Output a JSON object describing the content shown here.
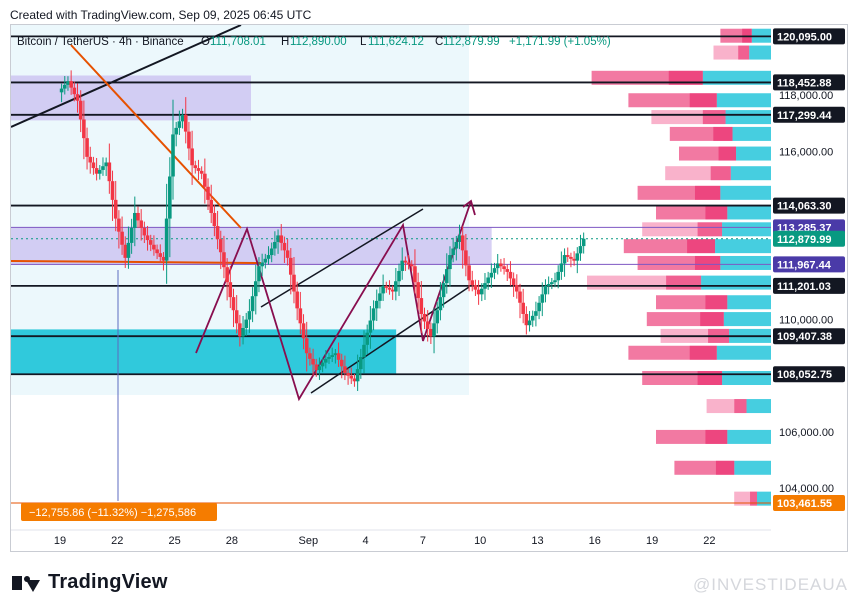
{
  "header": {
    "created_text": "Created with TradingView.com, Sep 09, 2025 06:45 UTC",
    "symbol": "Bitcoin / TetherUS · 4h · Binance",
    "o_label": "O",
    "o_value": "111,708.01",
    "h_label": "H",
    "h_value": "112,890.00",
    "l_label": "L",
    "l_value": "111,624.12",
    "c_label": "C",
    "c_value": "112,879.99",
    "change": "+1,171.99 (+1.05%)"
  },
  "footer": {
    "logo_text": "TradingView",
    "watermark": "@INVESTIDEAUA"
  },
  "measure_label": "−12,755.86 (−11.32%) −1,275,586",
  "colors": {
    "up": "#089981",
    "down": "#f23645",
    "violet": "#b39ddb",
    "cyan": "#00bcd4",
    "orange": "#e65100",
    "maroon": "#880e4f",
    "pink": "#f06292",
    "price_tag": "#131722",
    "current_tag": "#089981",
    "violet_tag": "#4a3aa8",
    "orange_tag": "#f57c00"
  },
  "chart_data": {
    "type": "candlestick",
    "ylim": [
      102500,
      120500
    ],
    "y_ticks": [
      104000,
      106000,
      110000,
      116000,
      118000
    ],
    "y_tick_labels": [
      "104,000.00",
      "106,000.00",
      "110,000.00",
      "116,000.00",
      "118,000.00"
    ],
    "x_tick_labels": [
      "19",
      "22",
      "25",
      "28",
      "Sep",
      "4",
      "7",
      "10",
      "13",
      "16",
      "19",
      "22"
    ],
    "x_tick_days": [
      0,
      3,
      6,
      9,
      13,
      16,
      19,
      22,
      25,
      28,
      31,
      34
    ],
    "levels": [
      {
        "price": 120095,
        "label": "120,095.00",
        "tag": "dark"
      },
      {
        "price": 118452.88,
        "label": "118,452.88",
        "tag": "dark"
      },
      {
        "price": 117299.44,
        "label": "117,299.44",
        "tag": "dark"
      },
      {
        "price": 114063.3,
        "label": "114,063.30",
        "tag": "dark"
      },
      {
        "price": 113285.37,
        "label": "113,285.37",
        "tag": "violet"
      },
      {
        "price": 112879.99,
        "label": "112,879.99",
        "tag": "current"
      },
      {
        "price": 111967.44,
        "label": "111,967.44",
        "tag": "violet"
      },
      {
        "price": 111201.03,
        "label": "111,201.03",
        "tag": "dark"
      },
      {
        "price": 109407.38,
        "label": "109,407.38",
        "tag": "dark"
      },
      {
        "price": 108052.75,
        "label": "108,052.75",
        "tag": "dark"
      },
      {
        "price": 103461.55,
        "label": "103,461.55",
        "tag": "orange"
      }
    ],
    "zones": [
      {
        "name": "violet-upper",
        "x0": 0,
        "x1": 10,
        "p0": 117100,
        "p1": 118700,
        "color": "violet"
      },
      {
        "name": "violet-mid",
        "x0": 0,
        "x1": 22.6,
        "p0": 111950,
        "p1": 113300,
        "color": "violet"
      },
      {
        "name": "cyan-lower",
        "x0": 0,
        "x1": 17.6,
        "p0": 108050,
        "p1": 109650,
        "color": "cyan"
      }
    ],
    "candle_path": [
      [
        0,
        118100
      ],
      [
        0.5,
        118500
      ],
      [
        1,
        117800
      ],
      [
        1.5,
        115800
      ],
      [
        2,
        115200
      ],
      [
        2.5,
        115600
      ],
      [
        3,
        113600
      ],
      [
        3.5,
        112200
      ],
      [
        4,
        113800
      ],
      [
        4.5,
        113000
      ],
      [
        5,
        112500
      ],
      [
        5.5,
        112100
      ],
      [
        6,
        116600
      ],
      [
        6.5,
        117300
      ],
      [
        7,
        115500
      ],
      [
        7.5,
        115200
      ],
      [
        8,
        113800
      ],
      [
        8.5,
        112400
      ],
      [
        9,
        110800
      ],
      [
        9.5,
        109400
      ],
      [
        10,
        110300
      ],
      [
        10.5,
        111900
      ],
      [
        11,
        112300
      ],
      [
        11.5,
        113000
      ],
      [
        12,
        112200
      ],
      [
        12.5,
        110400
      ],
      [
        13,
        108800
      ],
      [
        13.5,
        108200
      ],
      [
        14,
        108600
      ],
      [
        14.5,
        108800
      ],
      [
        15,
        108100
      ],
      [
        15.5,
        107800
      ],
      [
        16,
        109100
      ],
      [
        16.5,
        110400
      ],
      [
        17,
        111200
      ],
      [
        17.5,
        111000
      ],
      [
        18,
        112100
      ],
      [
        18.5,
        111900
      ],
      [
        19,
        110200
      ],
      [
        19.5,
        109400
      ],
      [
        20,
        110800
      ],
      [
        20.5,
        112300
      ],
      [
        21,
        113000
      ],
      [
        21.5,
        111400
      ],
      [
        22,
        110900
      ],
      [
        22.5,
        111500
      ],
      [
        23,
        112000
      ],
      [
        23.5,
        111700
      ],
      [
        24,
        111000
      ],
      [
        24.5,
        109800
      ],
      [
        25,
        110300
      ],
      [
        25.5,
        111200
      ],
      [
        26,
        111400
      ],
      [
        26.5,
        112300
      ],
      [
        27,
        112100
      ],
      [
        27.5,
        112880
      ]
    ],
    "volume_profile": [
      {
        "price": 120100,
        "vol": 0.22
      },
      {
        "price": 119500,
        "vol": 0.25
      },
      {
        "price": 118600,
        "vol": 0.78
      },
      {
        "price": 117800,
        "vol": 0.62
      },
      {
        "price": 117200,
        "vol": 0.52
      },
      {
        "price": 116600,
        "vol": 0.44
      },
      {
        "price": 115900,
        "vol": 0.4
      },
      {
        "price": 115200,
        "vol": 0.46
      },
      {
        "price": 114500,
        "vol": 0.58
      },
      {
        "price": 113800,
        "vol": 0.5
      },
      {
        "price": 113200,
        "vol": 0.56
      },
      {
        "price": 112600,
        "vol": 0.64
      },
      {
        "price": 112000,
        "vol": 0.58
      },
      {
        "price": 111300,
        "vol": 0.8
      },
      {
        "price": 110600,
        "vol": 0.5
      },
      {
        "price": 110000,
        "vol": 0.54
      },
      {
        "price": 109400,
        "vol": 0.48
      },
      {
        "price": 108800,
        "vol": 0.62
      },
      {
        "price": 107900,
        "vol": 0.56
      },
      {
        "price": 106900,
        "vol": 0.28
      },
      {
        "price": 105800,
        "vol": 0.5
      },
      {
        "price": 104700,
        "vol": 0.42
      },
      {
        "price": 103600,
        "vol": 0.16
      }
    ]
  }
}
